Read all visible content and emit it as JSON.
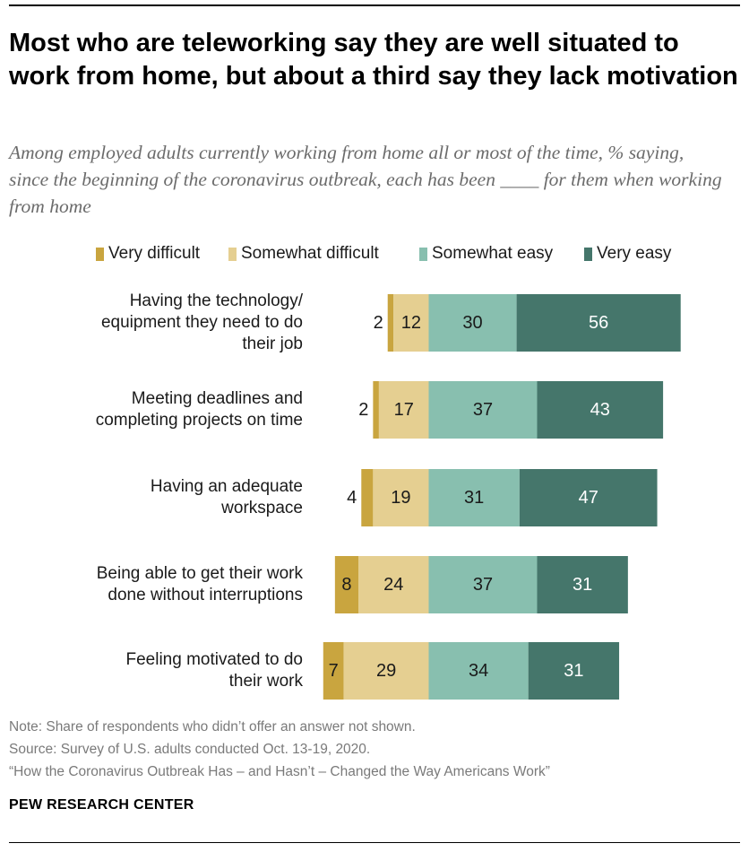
{
  "title": "Most who are teleworking say they are well situated to work from home, but about a third say they lack motivation",
  "subtitle": "Among employed adults currently working from home all or most of the time, % saying, since the beginning of the coronavirus outbreak, each has been ____ for them when working from home",
  "chart_data": {
    "type": "bar",
    "orientation": "horizontal-diverging-stacked",
    "categories": [
      [
        "Having the technology/",
        "equipment they need to do",
        "their job"
      ],
      [
        "Meeting deadlines and",
        "completing projects on time"
      ],
      [
        "Having an adequate",
        "workspace"
      ],
      [
        "Being able to get their work",
        "done without interruptions"
      ],
      [
        "Feeling motivated to do",
        "their work"
      ]
    ],
    "series": [
      {
        "name": "Very difficult",
        "color": "#c9a53f",
        "values": [
          2,
          2,
          4,
          8,
          7
        ]
      },
      {
        "name": "Somewhat difficult",
        "color": "#e5cf91",
        "values": [
          12,
          17,
          19,
          24,
          29
        ]
      },
      {
        "name": "Somewhat easy",
        "color": "#88bfaf",
        "values": [
          30,
          37,
          31,
          37,
          34
        ]
      },
      {
        "name": "Very easy",
        "color": "#45766b",
        "values": [
          56,
          43,
          47,
          31,
          31
        ]
      }
    ],
    "legend": "top",
    "grid": false
  },
  "notes": {
    "note": "Note: Share of respondents who didn’t offer an answer not shown.",
    "source": "Source: Survey of U.S. adults conducted Oct. 13-19, 2020.",
    "report": "“How the Coronavirus Outbreak Has – and Hasn’t – Changed the Way Americans Work”"
  },
  "brand": "PEW RESEARCH CENTER"
}
